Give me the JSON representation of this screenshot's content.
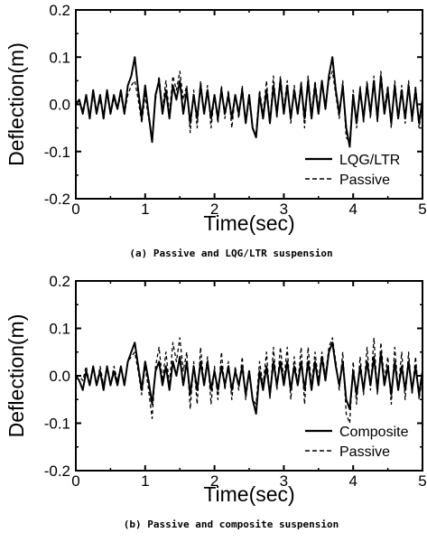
{
  "chart_data": [
    {
      "type": "line",
      "caption": "(a) Passive and LQG/LTR suspension",
      "xlabel": "Time(sec)",
      "ylabel": "Deflection(m)",
      "xlim": [
        0,
        5
      ],
      "ylim": [
        -0.2,
        0.2
      ],
      "xticks": [
        0,
        1,
        2,
        3,
        4,
        5
      ],
      "yticks": [
        -0.2,
        -0.1,
        0.0,
        0.1,
        0.2
      ],
      "ytick_labels": [
        "-0.2",
        "-0.1",
        "0.0",
        "0.1",
        "0.2"
      ],
      "legend_position": "bottom-right",
      "x": [
        0.0,
        0.05,
        0.1,
        0.15,
        0.2,
        0.25,
        0.3,
        0.35,
        0.4,
        0.45,
        0.5,
        0.55,
        0.6,
        0.65,
        0.7,
        0.75,
        0.8,
        0.85,
        0.9,
        0.95,
        1.0,
        1.05,
        1.1,
        1.15,
        1.2,
        1.25,
        1.3,
        1.35,
        1.4,
        1.45,
        1.5,
        1.55,
        1.6,
        1.65,
        1.7,
        1.75,
        1.8,
        1.85,
        1.9,
        1.95,
        2.0,
        2.05,
        2.1,
        2.15,
        2.2,
        2.25,
        2.3,
        2.35,
        2.4,
        2.45,
        2.5,
        2.55,
        2.6,
        2.65,
        2.7,
        2.75,
        2.8,
        2.85,
        2.9,
        2.95,
        3.0,
        3.05,
        3.1,
        3.15,
        3.2,
        3.25,
        3.3,
        3.35,
        3.4,
        3.45,
        3.5,
        3.55,
        3.6,
        3.65,
        3.7,
        3.75,
        3.8,
        3.85,
        3.9,
        3.95,
        4.0,
        4.05,
        4.1,
        4.15,
        4.2,
        4.25,
        4.3,
        4.35,
        4.4,
        4.45,
        4.5,
        4.55,
        4.6,
        4.65,
        4.7,
        4.75,
        4.8,
        4.85,
        4.9,
        4.95,
        5.0
      ],
      "series": [
        {
          "name": "LQG/LTR",
          "style": "solid",
          "values": [
            0.0,
            0.01,
            -0.02,
            0.02,
            -0.03,
            0.03,
            -0.02,
            0.02,
            -0.03,
            0.03,
            -0.02,
            0.02,
            -0.01,
            0.03,
            -0.02,
            0.04,
            0.06,
            0.1,
            0.03,
            -0.03,
            0.04,
            -0.02,
            -0.08,
            0.02,
            0.05,
            -0.02,
            0.03,
            -0.03,
            0.04,
            0.01,
            0.05,
            -0.02,
            0.03,
            -0.04,
            0.02,
            -0.03,
            0.04,
            -0.02,
            0.03,
            -0.03,
            0.02,
            -0.03,
            0.03,
            -0.02,
            0.02,
            -0.03,
            0.02,
            -0.02,
            0.03,
            -0.04,
            0.02,
            -0.05,
            -0.07,
            0.02,
            -0.03,
            0.03,
            -0.04,
            0.04,
            -0.02,
            0.05,
            -0.02,
            0.04,
            -0.03,
            0.03,
            -0.02,
            0.04,
            -0.03,
            0.05,
            -0.03,
            0.04,
            -0.02,
            0.05,
            -0.01,
            0.06,
            0.1,
            0.03,
            -0.02,
            0.04,
            -0.05,
            -0.09,
            0.02,
            -0.04,
            0.03,
            -0.03,
            0.04,
            -0.02,
            0.05,
            -0.03,
            0.06,
            -0.02,
            0.03,
            -0.04,
            0.04,
            -0.03,
            0.03,
            -0.03,
            0.04,
            -0.03,
            0.03,
            -0.04,
            0.01
          ]
        },
        {
          "name": "Passive",
          "style": "dashed",
          "values": [
            0.0,
            0.0,
            -0.01,
            0.01,
            -0.02,
            0.02,
            -0.02,
            0.01,
            -0.02,
            0.02,
            -0.02,
            0.01,
            -0.01,
            0.02,
            -0.02,
            0.02,
            0.04,
            0.05,
            0.01,
            -0.04,
            0.02,
            -0.03,
            -0.07,
            0.01,
            0.06,
            -0.01,
            0.05,
            -0.02,
            0.06,
            0.03,
            0.07,
            0.01,
            0.04,
            -0.06,
            0.03,
            -0.05,
            0.05,
            -0.02,
            0.04,
            -0.05,
            0.02,
            -0.04,
            0.04,
            -0.03,
            0.03,
            -0.05,
            0.02,
            -0.03,
            0.04,
            -0.04,
            0.01,
            -0.05,
            -0.06,
            0.03,
            -0.02,
            0.05,
            -0.04,
            0.06,
            -0.03,
            0.06,
            -0.01,
            0.05,
            -0.04,
            0.04,
            -0.02,
            0.05,
            -0.05,
            0.06,
            -0.02,
            0.05,
            -0.01,
            0.04,
            0.0,
            0.05,
            0.07,
            0.02,
            -0.03,
            0.05,
            -0.07,
            -0.08,
            0.03,
            -0.05,
            0.04,
            -0.04,
            0.05,
            -0.03,
            0.06,
            -0.04,
            0.07,
            -0.01,
            0.04,
            -0.05,
            0.05,
            -0.03,
            0.04,
            -0.04,
            0.05,
            -0.04,
            0.04,
            -0.05,
            0.0
          ]
        }
      ]
    },
    {
      "type": "line",
      "caption": "(b) Passive and composite suspension",
      "xlabel": "Time(sec)",
      "ylabel": "Deflection(m)",
      "xlim": [
        0,
        5
      ],
      "ylim": [
        -0.2,
        0.2
      ],
      "xticks": [
        0,
        1,
        2,
        3,
        4,
        5
      ],
      "yticks": [
        -0.2,
        -0.1,
        0.0,
        0.1,
        0.2
      ],
      "ytick_labels": [
        "-0.2",
        "-0.1",
        "0.0",
        "0.1",
        "0.2"
      ],
      "legend_position": "bottom-right",
      "x": [
        0.0,
        0.05,
        0.1,
        0.15,
        0.2,
        0.25,
        0.3,
        0.35,
        0.4,
        0.45,
        0.5,
        0.55,
        0.6,
        0.65,
        0.7,
        0.75,
        0.8,
        0.85,
        0.9,
        0.95,
        1.0,
        1.05,
        1.1,
        1.15,
        1.2,
        1.25,
        1.3,
        1.35,
        1.4,
        1.45,
        1.5,
        1.55,
        1.6,
        1.65,
        1.7,
        1.75,
        1.8,
        1.85,
        1.9,
        1.95,
        2.0,
        2.05,
        2.1,
        2.15,
        2.2,
        2.25,
        2.3,
        2.35,
        2.4,
        2.45,
        2.5,
        2.55,
        2.6,
        2.65,
        2.7,
        2.75,
        2.8,
        2.85,
        2.9,
        2.95,
        3.0,
        3.05,
        3.1,
        3.15,
        3.2,
        3.25,
        3.3,
        3.35,
        3.4,
        3.45,
        3.5,
        3.55,
        3.6,
        3.65,
        3.7,
        3.75,
        3.8,
        3.85,
        3.9,
        3.95,
        4.0,
        4.05,
        4.1,
        4.15,
        4.2,
        4.25,
        4.3,
        4.35,
        4.4,
        4.45,
        4.5,
        4.55,
        4.6,
        4.65,
        4.7,
        4.75,
        4.8,
        4.85,
        4.9,
        4.95,
        5.0
      ],
      "series": [
        {
          "name": "Composite",
          "style": "solid",
          "values": [
            0.0,
            -0.01,
            -0.03,
            0.01,
            -0.02,
            0.02,
            -0.02,
            0.01,
            -0.03,
            0.02,
            -0.02,
            0.01,
            -0.02,
            0.02,
            -0.02,
            0.03,
            0.05,
            0.07,
            0.02,
            -0.03,
            0.03,
            -0.01,
            -0.06,
            0.01,
            0.03,
            -0.02,
            0.02,
            -0.03,
            0.03,
            0.0,
            0.04,
            -0.02,
            0.03,
            -0.04,
            0.02,
            -0.03,
            0.03,
            -0.02,
            0.03,
            -0.03,
            0.01,
            -0.03,
            0.02,
            -0.02,
            0.02,
            -0.03,
            0.01,
            -0.02,
            0.02,
            -0.04,
            0.01,
            -0.05,
            -0.08,
            0.01,
            -0.03,
            0.02,
            -0.04,
            0.03,
            -0.02,
            0.03,
            -0.02,
            0.03,
            -0.03,
            0.02,
            -0.02,
            0.03,
            -0.03,
            0.03,
            -0.03,
            0.03,
            -0.02,
            0.04,
            -0.01,
            0.05,
            0.07,
            0.02,
            -0.02,
            0.03,
            -0.05,
            -0.07,
            0.01,
            -0.04,
            0.02,
            -0.03,
            0.03,
            -0.02,
            0.04,
            -0.03,
            0.05,
            -0.02,
            0.02,
            -0.04,
            0.03,
            -0.03,
            0.02,
            -0.03,
            0.03,
            -0.03,
            0.02,
            -0.04,
            0.01
          ]
        },
        {
          "name": "Passive",
          "style": "dashed",
          "values": [
            0.0,
            0.0,
            -0.01,
            0.02,
            -0.02,
            0.02,
            -0.02,
            0.02,
            -0.02,
            0.02,
            -0.02,
            0.02,
            -0.01,
            0.02,
            -0.02,
            0.03,
            0.04,
            0.05,
            0.01,
            -0.04,
            0.02,
            -0.03,
            -0.09,
            0.02,
            0.06,
            -0.01,
            0.05,
            -0.02,
            0.07,
            0.03,
            0.08,
            0.01,
            0.05,
            -0.07,
            0.03,
            -0.06,
            0.06,
            -0.02,
            0.04,
            -0.06,
            0.02,
            -0.05,
            0.05,
            -0.03,
            0.03,
            -0.05,
            0.02,
            -0.03,
            0.04,
            -0.05,
            0.01,
            -0.05,
            -0.06,
            0.03,
            -0.02,
            0.05,
            -0.05,
            0.06,
            -0.03,
            0.06,
            -0.01,
            0.06,
            -0.05,
            0.04,
            -0.02,
            0.06,
            -0.06,
            0.06,
            -0.02,
            0.05,
            -0.01,
            0.05,
            0.0,
            0.06,
            0.08,
            0.03,
            -0.03,
            0.05,
            -0.08,
            -0.1,
            0.03,
            -0.06,
            0.04,
            -0.04,
            0.06,
            -0.03,
            0.08,
            -0.04,
            0.07,
            -0.01,
            0.04,
            -0.06,
            0.06,
            -0.03,
            0.05,
            -0.05,
            0.05,
            -0.04,
            0.04,
            -0.05,
            0.0
          ]
        }
      ]
    }
  ]
}
